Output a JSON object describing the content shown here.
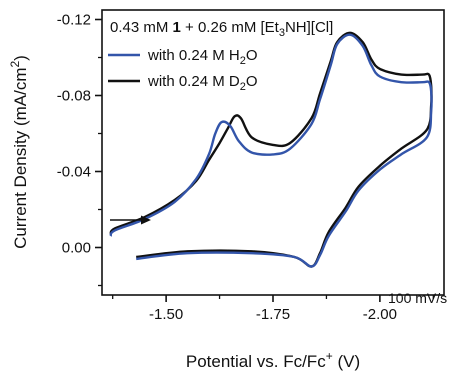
{
  "chart_data": {
    "type": "line",
    "title": "",
    "header": {
      "prefix": "0.43 mM ",
      "bold": "1",
      "middle": " + 0.26 mM [Et",
      "sub": "3",
      "suffix": "NH][Cl]"
    },
    "xlabel": "Potential vs. Fc/Fc",
    "xlabel_sup": "+",
    "xlabel_unit": " (V)",
    "ylabel": "Current Density (mA/cm",
    "ylabel_sup": "2",
    "ylabel_unit": ")",
    "xlim": [
      -1.35,
      -2.15
    ],
    "ylim": [
      0.025,
      -0.125
    ],
    "x_ticks": [
      -1.5,
      -1.75,
      -2.0
    ],
    "x_tick_labels": [
      "-1.50",
      "-1.75",
      "-2.00"
    ],
    "y_ticks": [
      -0.12,
      -0.08,
      -0.04,
      0.0
    ],
    "y_tick_labels": [
      "-0.12",
      "-0.08",
      "-0.04",
      "0.00"
    ],
    "scan_rate": "100 mV/s",
    "colors": {
      "h2o": "#3355aa",
      "d2o": "#111111",
      "axis": "#111111"
    },
    "series": [
      {
        "name": "with 0.24 M H2O",
        "label_main": "with 0.24 M H",
        "label_sub": "2",
        "label_tail": "O",
        "color": "#3355aa",
        "x": [
          -1.37,
          -1.38,
          -1.45,
          -1.52,
          -1.57,
          -1.6,
          -1.615,
          -1.63,
          -1.65,
          -1.67,
          -1.7,
          -1.75,
          -1.79,
          -1.84,
          -1.86,
          -1.885,
          -1.9,
          -1.93,
          -1.96,
          -1.98,
          -2.0,
          -2.05,
          -2.1,
          -2.115,
          -2.12,
          -2.12,
          -2.11,
          -2.05,
          -2.0,
          -1.95,
          -1.92,
          -1.88,
          -1.86,
          -1.84,
          -1.8,
          -1.7,
          -1.55,
          -1.43
        ],
        "y": [
          -0.006,
          -0.009,
          -0.015,
          -0.024,
          -0.036,
          -0.049,
          -0.06,
          -0.066,
          -0.064,
          -0.056,
          -0.05,
          -0.049,
          -0.052,
          -0.065,
          -0.078,
          -0.096,
          -0.107,
          -0.112,
          -0.106,
          -0.096,
          -0.09,
          -0.087,
          -0.087,
          -0.087,
          -0.082,
          -0.072,
          -0.058,
          -0.049,
          -0.041,
          -0.03,
          -0.019,
          -0.006,
          0.004,
          0.01,
          0.005,
          0.003,
          0.003,
          0.006
        ]
      },
      {
        "name": "with 0.24 M D2O",
        "label_main": "with 0.24 M D",
        "label_sub": "2",
        "label_tail": "O",
        "color": "#111111",
        "x": [
          -1.37,
          -1.38,
          -1.45,
          -1.52,
          -1.57,
          -1.6,
          -1.625,
          -1.645,
          -1.66,
          -1.675,
          -1.7,
          -1.75,
          -1.79,
          -1.84,
          -1.86,
          -1.885,
          -1.9,
          -1.93,
          -1.96,
          -1.98,
          -2.0,
          -2.05,
          -2.1,
          -2.115,
          -2.12,
          -2.12,
          -2.11,
          -2.05,
          -2.0,
          -1.95,
          -1.92,
          -1.88,
          -1.86,
          -1.84,
          -1.8,
          -1.7,
          -1.55,
          -1.43
        ],
        "y": [
          -0.007,
          -0.01,
          -0.016,
          -0.025,
          -0.035,
          -0.046,
          -0.055,
          -0.063,
          -0.069,
          -0.068,
          -0.058,
          -0.054,
          -0.055,
          -0.068,
          -0.081,
          -0.098,
          -0.108,
          -0.113,
          -0.108,
          -0.099,
          -0.094,
          -0.091,
          -0.091,
          -0.091,
          -0.085,
          -0.075,
          -0.062,
          -0.052,
          -0.043,
          -0.032,
          -0.021,
          -0.008,
          0.003,
          0.01,
          0.005,
          0.002,
          0.002,
          0.005
        ]
      }
    ],
    "legend_placement": "top-left",
    "grid": false
  }
}
